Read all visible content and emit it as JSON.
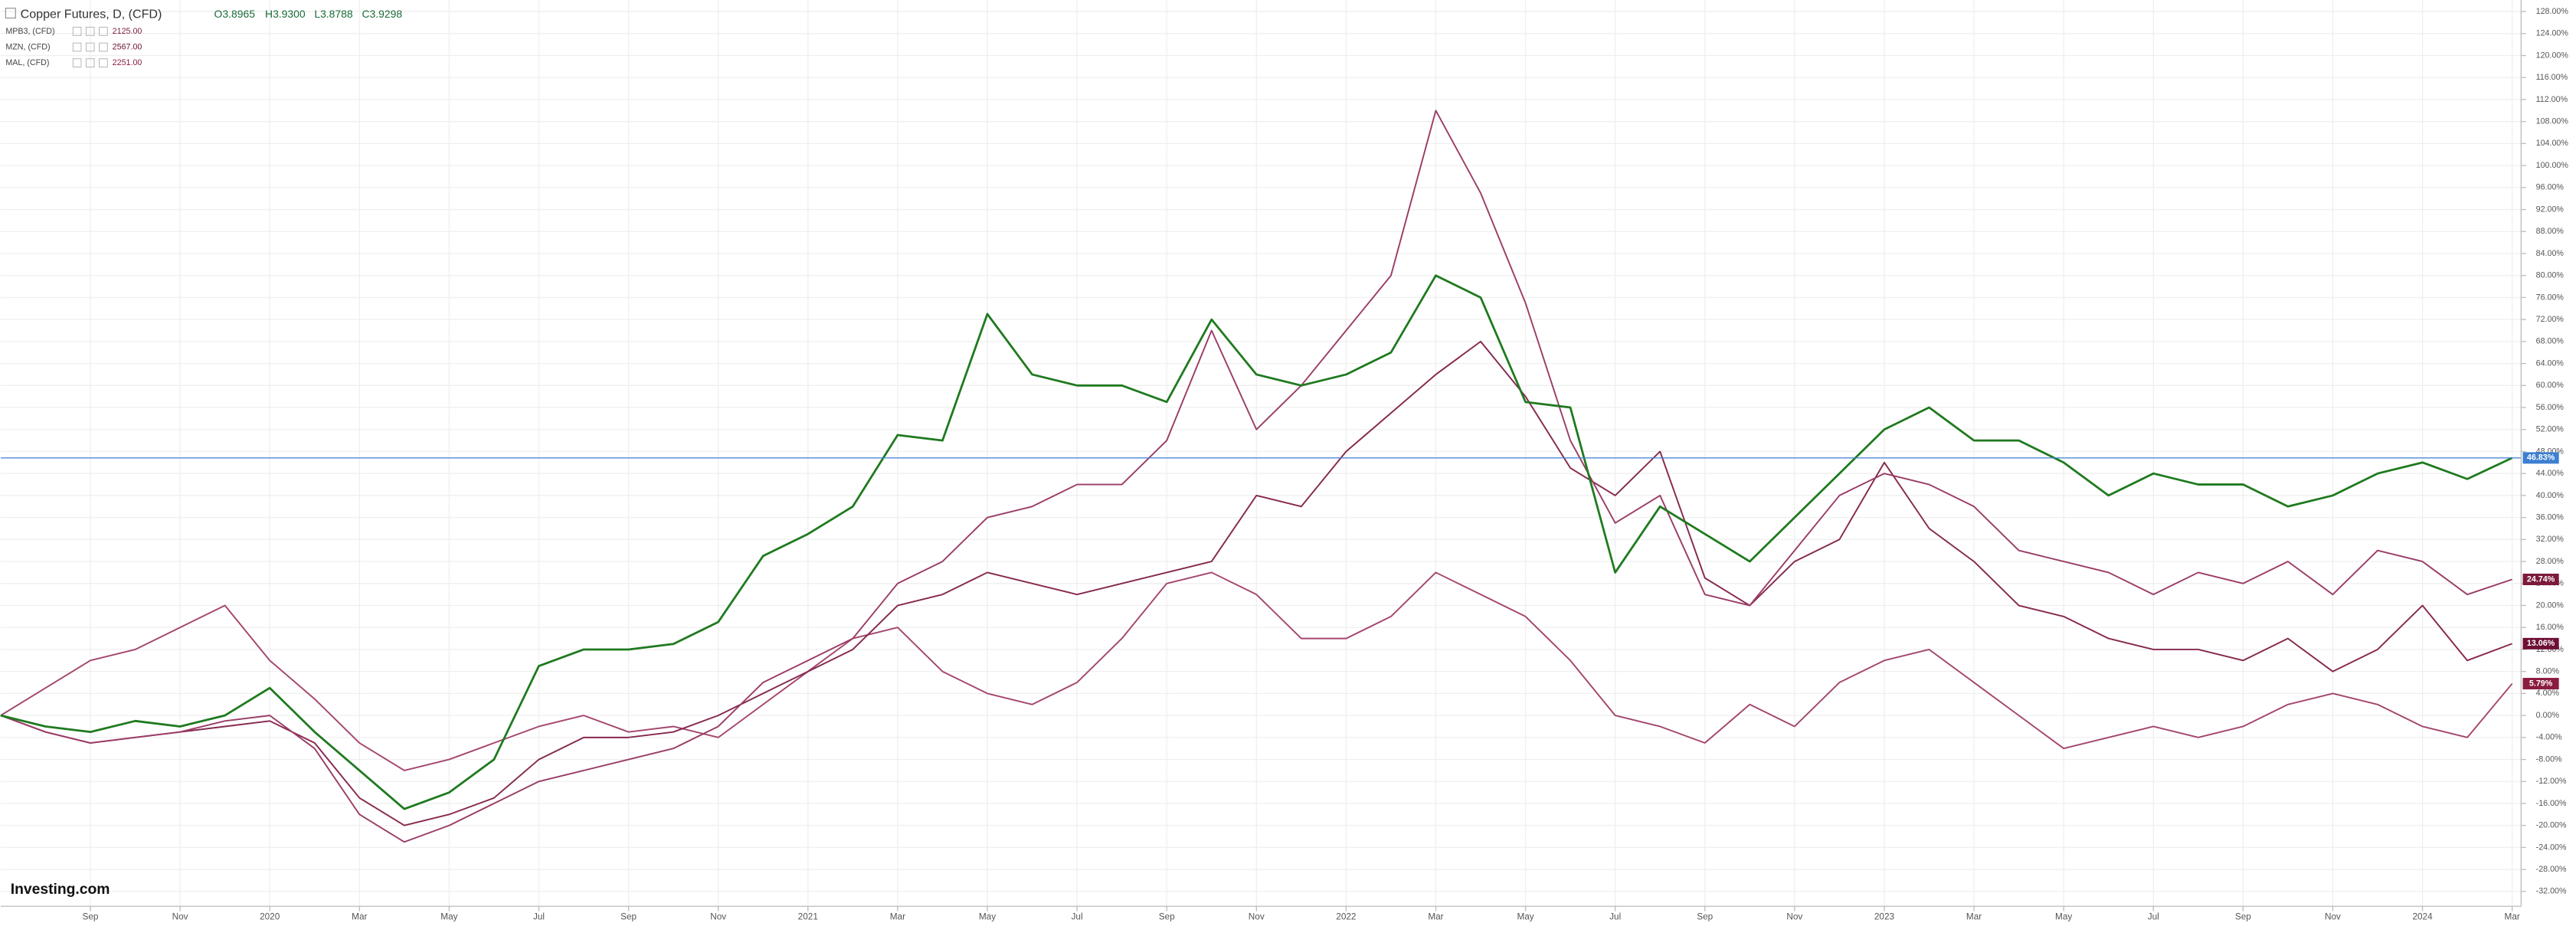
{
  "chart_data": {
    "type": "line",
    "header": {
      "title": "Copper Futures, D, (CFD)",
      "open": "O3.8965",
      "high": "H3.9300",
      "low": "L3.8788",
      "close": "C3.9298"
    },
    "watermark": "Investing.com",
    "x": [
      0,
      1,
      2,
      3,
      4,
      5,
      6,
      7,
      8,
      9,
      10,
      11,
      12,
      13,
      14,
      15,
      16,
      17,
      18,
      19,
      20,
      21,
      22,
      23,
      24,
      25,
      26,
      27,
      28,
      29,
      30,
      31,
      32,
      33,
      34,
      35,
      36,
      37,
      38,
      39,
      40,
      41,
      42,
      43,
      44,
      45,
      46,
      47,
      48,
      49,
      50,
      51,
      52,
      53,
      54,
      55,
      56
    ],
    "xlim": [
      0,
      56.2
    ],
    "xticks": [
      {
        "value": 2,
        "label": "Sep"
      },
      {
        "value": 4,
        "label": "Nov"
      },
      {
        "value": 6,
        "label": "2020"
      },
      {
        "value": 8,
        "label": "Mar"
      },
      {
        "value": 10,
        "label": "May"
      },
      {
        "value": 12,
        "label": "Jul"
      },
      {
        "value": 14,
        "label": "Sep"
      },
      {
        "value": 16,
        "label": "Nov"
      },
      {
        "value": 18,
        "label": "2021"
      },
      {
        "value": 20,
        "label": "Mar"
      },
      {
        "value": 22,
        "label": "May"
      },
      {
        "value": 24,
        "label": "Jul"
      },
      {
        "value": 26,
        "label": "Sep"
      },
      {
        "value": 28,
        "label": "Nov"
      },
      {
        "value": 30,
        "label": "2022"
      },
      {
        "value": 32,
        "label": "Mar"
      },
      {
        "value": 34,
        "label": "May"
      },
      {
        "value": 36,
        "label": "Jul"
      },
      {
        "value": 38,
        "label": "Sep"
      },
      {
        "value": 40,
        "label": "Nov"
      },
      {
        "value": 42,
        "label": "2023"
      },
      {
        "value": 44,
        "label": "Mar"
      },
      {
        "value": 46,
        "label": "May"
      },
      {
        "value": 48,
        "label": "Jul"
      },
      {
        "value": 50,
        "label": "Sep"
      },
      {
        "value": 52,
        "label": "Nov"
      },
      {
        "value": 54,
        "label": "2024"
      },
      {
        "value": 56,
        "label": "Mar"
      }
    ],
    "ylim": [
      -34.7,
      130.1
    ],
    "yticks": [
      {
        "value": 128,
        "label": "128.00%"
      },
      {
        "value": 124,
        "label": "124.00%"
      },
      {
        "value": 120,
        "label": "120.00%"
      },
      {
        "value": 116,
        "label": "116.00%"
      },
      {
        "value": 112,
        "label": "112.00%"
      },
      {
        "value": 108,
        "label": "108.00%"
      },
      {
        "value": 104,
        "label": "104.00%"
      },
      {
        "value": 100,
        "label": "100.00%"
      },
      {
        "value": 96,
        "label": "96.00%"
      },
      {
        "value": 92,
        "label": "92.00%"
      },
      {
        "value": 88,
        "label": "88.00%"
      },
      {
        "value": 84,
        "label": "84.00%"
      },
      {
        "value": 80,
        "label": "80.00%"
      },
      {
        "value": 76,
        "label": "76.00%"
      },
      {
        "value": 72,
        "label": "72.00%"
      },
      {
        "value": 68,
        "label": "68.00%"
      },
      {
        "value": 64,
        "label": "64.00%"
      },
      {
        "value": 60,
        "label": "60.00%"
      },
      {
        "value": 56,
        "label": "56.00%"
      },
      {
        "value": 52,
        "label": "52.00%"
      },
      {
        "value": 48,
        "label": "48.00%"
      },
      {
        "value": 44,
        "label": "44.00%"
      },
      {
        "value": 40,
        "label": "40.00%"
      },
      {
        "value": 36,
        "label": "36.00%"
      },
      {
        "value": 32,
        "label": "32.00%"
      },
      {
        "value": 28,
        "label": "28.00%"
      },
      {
        "value": 24,
        "label": "24.00%"
      },
      {
        "value": 20,
        "label": "20.00%"
      },
      {
        "value": 16,
        "label": "16.00%"
      },
      {
        "value": 12,
        "label": "12.00%"
      },
      {
        "value": 8,
        "label": "8.00%"
      },
      {
        "value": 4,
        "label": "4.00%"
      },
      {
        "value": 0,
        "label": "0.00%"
      },
      {
        "value": -4,
        "label": "-4.00%"
      },
      {
        "value": -8,
        "label": "-8.00%"
      },
      {
        "value": -12,
        "label": "-12.00%"
      },
      {
        "value": -16,
        "label": "-16.00%"
      },
      {
        "value": -20,
        "label": "-20.00%"
      },
      {
        "value": -24,
        "label": "-24.00%"
      },
      {
        "value": -28,
        "label": "-28.00%"
      },
      {
        "value": -32,
        "label": "-32.00%"
      }
    ],
    "grid": true,
    "series": [
      {
        "name": "Copper Futures, D, (CFD)",
        "color": "#1f7a1f",
        "tag_color": "#3d7fd1",
        "values": [
          0,
          -2,
          -3,
          -1,
          -2,
          0,
          5,
          -3,
          -10,
          -17,
          -14,
          -8,
          9,
          12,
          12,
          13,
          17,
          29,
          33,
          38,
          51,
          50,
          73,
          62,
          60,
          60,
          57,
          72,
          62,
          60,
          62,
          66,
          80,
          76,
          57,
          56,
          26,
          38,
          33,
          28,
          36,
          44,
          52,
          56,
          50,
          50,
          46,
          40,
          44,
          42,
          42,
          38,
          40,
          44,
          46,
          43,
          46.83
        ],
        "last_label": "46.83%"
      },
      {
        "name": "MPB3, (CFD)",
        "legend_value": "2125.00",
        "color": "#9a3d67",
        "tag_color": "#7b1a3c",
        "values": [
          0,
          -3,
          -5,
          -4,
          -3,
          -1,
          0,
          -6,
          -18,
          -23,
          -20,
          -16,
          -12,
          -10,
          -8,
          -6,
          -2,
          6,
          10,
          14,
          24,
          28,
          36,
          38,
          42,
          42,
          50,
          70,
          52,
          60,
          70,
          80,
          110,
          95,
          75,
          50,
          35,
          40,
          22,
          20,
          30,
          40,
          44,
          42,
          38,
          30,
          28,
          26,
          22,
          26,
          24,
          28,
          22,
          30,
          28,
          22,
          24.74
        ],
        "last_label": "24.74%"
      },
      {
        "name": "MZN, (CFD)",
        "legend_value": "2567.00",
        "color": "#86294f",
        "tag_color": "#6e0f35",
        "values": [
          0,
          -3,
          -5,
          -4,
          -3,
          -2,
          -1,
          -5,
          -15,
          -20,
          -18,
          -15,
          -8,
          -4,
          -4,
          -3,
          0,
          4,
          8,
          12,
          20,
          22,
          26,
          24,
          22,
          24,
          26,
          28,
          40,
          38,
          48,
          55,
          62,
          68,
          58,
          45,
          40,
          48,
          25,
          20,
          28,
          32,
          46,
          34,
          28,
          20,
          18,
          14,
          12,
          12,
          10,
          14,
          8,
          12,
          20,
          10,
          13.06
        ],
        "last_label": "13.06%"
      },
      {
        "name": "MAL, (CFD)",
        "legend_value": "2251.00",
        "color": "#a4466f",
        "tag_color": "#8a1c3f",
        "values": [
          0,
          5,
          10,
          12,
          16,
          20,
          10,
          3,
          -5,
          -10,
          -8,
          -5,
          -2,
          0,
          -3,
          -2,
          -4,
          2,
          8,
          14,
          16,
          8,
          4,
          2,
          6,
          14,
          24,
          26,
          22,
          14,
          14,
          18,
          26,
          22,
          18,
          10,
          0,
          -2,
          -5,
          2,
          -2,
          6,
          10,
          12,
          6,
          0,
          -6,
          -4,
          -2,
          -4,
          -2,
          2,
          4,
          2,
          -2,
          -4,
          5.79
        ],
        "last_label": "5.79%"
      }
    ]
  }
}
